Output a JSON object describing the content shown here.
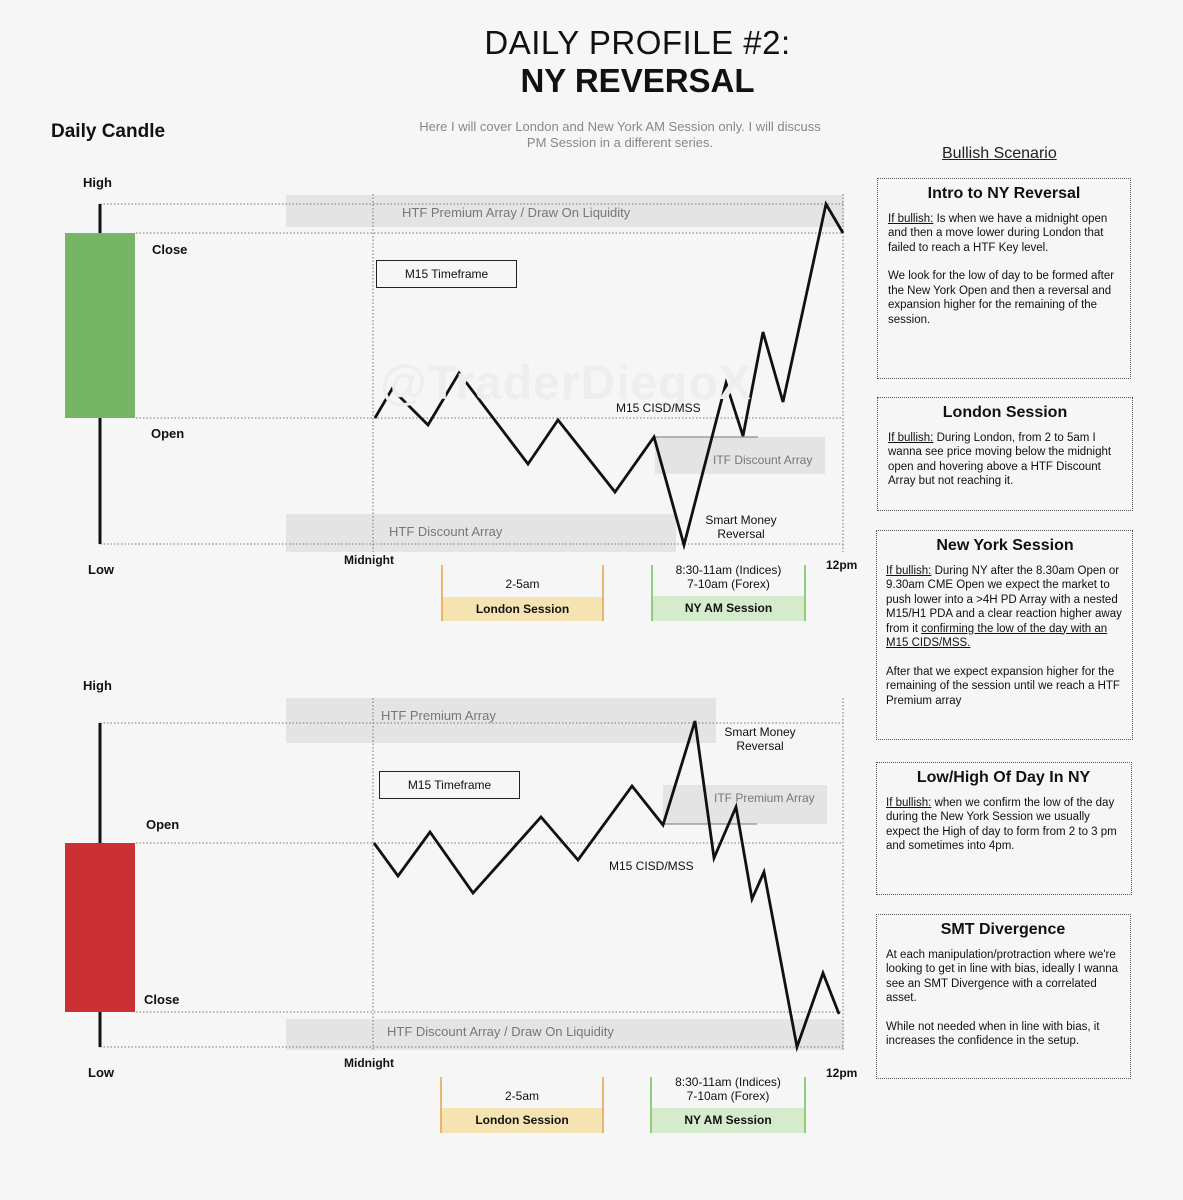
{
  "header": {
    "title_line1": "DAILY PROFILE #2:",
    "title_line2": "NY REVERSAL",
    "daily_candle": "Daily Candle",
    "intro_note": "Here I will cover London and New York AM Session only. I will discuss PM Session in a different series.",
    "scenario_heading": "Bullish Scenario",
    "watermark": "@TraderDiegoX"
  },
  "colors": {
    "bullish_candle": "#76b466",
    "bearish_candle": "#cb3134",
    "london_bar": "#f6e3b2",
    "london_border": "#e0a44a",
    "ny_bar": "#d5eccc",
    "ny_border": "#71c05c",
    "zone": "#e4e4e4"
  },
  "top_diagram": {
    "candle": {
      "open": "Open",
      "close": "Close",
      "high": "High",
      "low": "Low"
    },
    "midnight": "Midnight",
    "noon": "12pm",
    "timeframe": "M15 Timeframe",
    "htf_premium": "HTF Premium Array / Draw On Liquidity",
    "htf_discount": "HTF Discount Array",
    "itf_discount": "ITF Discount Array",
    "cisd": "M15 CISD/MSS",
    "smr_line1": "Smart Money",
    "smr_line2": "Reversal",
    "london": {
      "time": "2-5am",
      "label": "London Session"
    },
    "ny": {
      "time1": "8:30-11am (Indices)",
      "time2": "7-10am (Forex)",
      "label": "NY AM  Session"
    }
  },
  "bottom_diagram": {
    "candle": {
      "open": "Open",
      "close": "Close",
      "high": "High",
      "low": "Low"
    },
    "midnight": "Midnight",
    "noon": "12pm",
    "timeframe": "M15 Timeframe",
    "htf_premium": "HTF Premium Array",
    "htf_discount": "HTF Discount Array / Draw On Liquidity",
    "itf_premium": "ITF Premium Array",
    "cisd": "M15 CISD/MSS",
    "smr_line1": "Smart Money",
    "smr_line2": "Reversal",
    "london": {
      "time": "2-5am",
      "label": "London Session"
    },
    "ny": {
      "time1": "8:30-11am (Indices)",
      "time2": "7-10am (Forex)",
      "label": "NY AM  Session"
    }
  },
  "cards": {
    "intro": {
      "title": "Intro to NY Reversal",
      "lead": "If bullish:",
      "p1": " Is when we have a midnight open and then a move lower during London that failed to reach a HTF Key level.",
      "p2": "We look for the low of day to be formed after the New York Open and then a reversal and expansion higher for the remaining of the session."
    },
    "london": {
      "title": "London Session",
      "lead": "If bullish:",
      "p1": " During London, from 2 to 5am I wanna see price moving below the midnight open and hovering above a HTF Discount Array but not reaching it."
    },
    "ny": {
      "title": "New York Session",
      "lead": "If bullish:",
      "p1a": " During NY after the 8.30am Open or 9.30am CME Open we expect the market to push lower into a >4H PD Array with a nested M15/H1 PDA and a clear reaction higher away from it ",
      "p1u": "confirming the low of the day with an M15 CIDS/MSS.",
      "p2": "After that we expect expansion higher for the remaining of the session until we reach a HTF Premium array"
    },
    "lowhigh": {
      "title": "Low/High Of Day In NY",
      "lead": "If bullish:",
      "p1": " when we confirm the low of the day during the New York Session we usually expect the High of day to form from 2 to 3 pm and sometimes into 4pm."
    },
    "smt": {
      "title": "SMT Divergence",
      "p1": "At each manipulation/protraction where we're looking to get in line with bias, ideally I wanna see an SMT Divergence with a correlated asset.",
      "p2": "While not needed when in line with bias, it increases the confidence in the setup."
    }
  }
}
